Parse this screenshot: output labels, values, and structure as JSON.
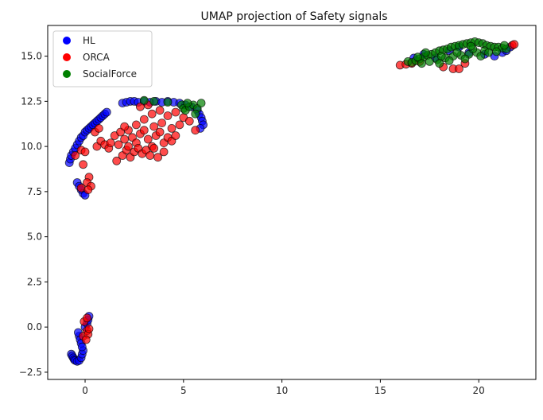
{
  "chart_data": {
    "type": "scatter",
    "title": "UMAP projection of Safety signals",
    "xlabel": "",
    "ylabel": "",
    "xlim": [
      -1.9,
      22.9
    ],
    "ylim": [
      -2.9,
      16.7
    ],
    "xticks": [
      0,
      5,
      10,
      15,
      20
    ],
    "yticks": [
      -2.5,
      0.0,
      2.5,
      5.0,
      7.5,
      10.0,
      12.5,
      15.0
    ],
    "ytick_labels": [
      "−2.5",
      "0.0",
      "2.5",
      "5.0",
      "7.5",
      "10.0",
      "12.5",
      "15.0"
    ],
    "grid": false,
    "legend_position": "top-left",
    "series": [
      {
        "name": "HL",
        "color": "#0000ff",
        "points": [
          [
            -0.8,
            9.1
          ],
          [
            -0.75,
            9.3
          ],
          [
            -0.7,
            9.5
          ],
          [
            -0.6,
            9.7
          ],
          [
            -0.5,
            9.9
          ],
          [
            -0.4,
            10.1
          ],
          [
            -0.3,
            10.3
          ],
          [
            -0.2,
            10.5
          ],
          [
            -0.1,
            10.6
          ],
          [
            0.0,
            10.8
          ],
          [
            0.1,
            10.9
          ],
          [
            0.2,
            11.0
          ],
          [
            0.3,
            11.1
          ],
          [
            0.4,
            11.2
          ],
          [
            0.5,
            11.3
          ],
          [
            0.6,
            11.4
          ],
          [
            0.7,
            11.5
          ],
          [
            0.8,
            11.6
          ],
          [
            0.9,
            11.7
          ],
          [
            1.0,
            11.8
          ],
          [
            1.1,
            11.9
          ],
          [
            -0.4,
            8.0
          ],
          [
            -0.3,
            7.8
          ],
          [
            -0.2,
            7.6
          ],
          [
            -0.1,
            7.4
          ],
          [
            0.0,
            7.3
          ],
          [
            1.9,
            12.4
          ],
          [
            2.1,
            12.45
          ],
          [
            2.3,
            12.5
          ],
          [
            2.5,
            12.5
          ],
          [
            2.7,
            12.45
          ],
          [
            3.0,
            12.5
          ],
          [
            3.3,
            12.45
          ],
          [
            3.6,
            12.5
          ],
          [
            3.9,
            12.45
          ],
          [
            4.2,
            12.5
          ],
          [
            4.5,
            12.45
          ],
          [
            4.8,
            12.4
          ],
          [
            5.1,
            12.3
          ],
          [
            5.4,
            12.2
          ],
          [
            5.7,
            12.0
          ],
          [
            5.8,
            11.8
          ],
          [
            5.9,
            11.6
          ],
          [
            5.95,
            11.4
          ],
          [
            6.0,
            11.2
          ],
          [
            5.85,
            11.0
          ],
          [
            -0.7,
            -1.5
          ],
          [
            -0.65,
            -1.6
          ],
          [
            -0.6,
            -1.7
          ],
          [
            -0.55,
            -1.8
          ],
          [
            -0.5,
            -1.85
          ],
          [
            -0.4,
            -1.9
          ],
          [
            -0.3,
            -1.85
          ],
          [
            -0.2,
            -1.7
          ],
          [
            -0.15,
            -1.5
          ],
          [
            -0.1,
            -1.3
          ],
          [
            -0.3,
            -0.5
          ],
          [
            -0.25,
            -0.7
          ],
          [
            -0.2,
            -0.9
          ],
          [
            -0.15,
            -1.1
          ],
          [
            -0.35,
            -0.3
          ],
          [
            0.0,
            0.0
          ],
          [
            0.1,
            0.2
          ],
          [
            0.15,
            0.4
          ],
          [
            0.2,
            0.6
          ],
          [
            16.7,
            14.9
          ],
          [
            17.2,
            15.1
          ],
          [
            18.5,
            15.3
          ],
          [
            19.5,
            15.2
          ],
          [
            20.3,
            15.1
          ],
          [
            20.8,
            15.0
          ],
          [
            21.2,
            15.2
          ],
          [
            21.4,
            15.3
          ],
          [
            21.6,
            15.5
          ],
          [
            19.0,
            15.5
          ],
          [
            17.8,
            14.9
          ]
        ]
      },
      {
        "name": "ORCA",
        "color": "#ff0000",
        "points": [
          [
            -0.5,
            9.5
          ],
          [
            -0.2,
            9.8
          ],
          [
            0.0,
            9.7
          ],
          [
            -0.1,
            9.0
          ],
          [
            0.6,
            10.0
          ],
          [
            0.8,
            10.3
          ],
          [
            1.0,
            10.1
          ],
          [
            1.2,
            9.9
          ],
          [
            0.5,
            10.8
          ],
          [
            0.7,
            11.0
          ],
          [
            0.2,
            8.3
          ],
          [
            0.1,
            8.0
          ],
          [
            0.3,
            7.8
          ],
          [
            -0.2,
            7.7
          ],
          [
            0.15,
            7.6
          ],
          [
            1.5,
            10.6
          ],
          [
            1.8,
            10.8
          ],
          [
            2.0,
            10.4
          ],
          [
            2.2,
            10.9
          ],
          [
            2.4,
            10.5
          ],
          [
            2.6,
            10.2
          ],
          [
            2.8,
            10.7
          ],
          [
            3.0,
            10.9
          ],
          [
            3.2,
            10.4
          ],
          [
            3.4,
            10.0
          ],
          [
            3.6,
            10.6
          ],
          [
            3.8,
            10.8
          ],
          [
            4.0,
            10.2
          ],
          [
            4.2,
            10.5
          ],
          [
            4.4,
            10.3
          ],
          [
            1.6,
            9.2
          ],
          [
            1.9,
            9.5
          ],
          [
            2.1,
            9.8
          ],
          [
            2.3,
            9.4
          ],
          [
            2.5,
            9.7
          ],
          [
            2.7,
            9.9
          ],
          [
            2.9,
            9.6
          ],
          [
            3.1,
            9.8
          ],
          [
            3.3,
            9.5
          ],
          [
            3.5,
            9.9
          ],
          [
            1.7,
            10.1
          ],
          [
            2.2,
            10.0
          ],
          [
            2.6,
            11.2
          ],
          [
            3.0,
            11.5
          ],
          [
            3.4,
            11.8
          ],
          [
            3.8,
            12.0
          ],
          [
            4.2,
            11.7
          ],
          [
            4.6,
            11.9
          ],
          [
            5.0,
            11.6
          ],
          [
            5.3,
            11.4
          ],
          [
            4.8,
            11.2
          ],
          [
            4.4,
            11.0
          ],
          [
            3.9,
            11.3
          ],
          [
            3.5,
            11.1
          ],
          [
            2.8,
            12.2
          ],
          [
            3.2,
            12.3
          ],
          [
            4.6,
            10.6
          ],
          [
            5.6,
            10.9
          ],
          [
            4.0,
            9.7
          ],
          [
            3.7,
            9.4
          ],
          [
            1.3,
            10.2
          ],
          [
            2.0,
            11.1
          ],
          [
            -0.1,
            -0.5
          ],
          [
            0.1,
            -0.2
          ],
          [
            0.15,
            -0.4
          ],
          [
            0.05,
            -0.7
          ],
          [
            -0.05,
            0.3
          ],
          [
            0.1,
            0.5
          ],
          [
            0.2,
            -0.1
          ],
          [
            16.0,
            14.5
          ],
          [
            16.3,
            14.55
          ],
          [
            16.6,
            14.6
          ],
          [
            17.0,
            14.7
          ],
          [
            18.2,
            14.4
          ],
          [
            18.7,
            14.3
          ],
          [
            19.0,
            14.3
          ],
          [
            21.7,
            15.6
          ],
          [
            21.8,
            15.65
          ],
          [
            19.3,
            14.6
          ]
        ]
      },
      {
        "name": "SocialForce",
        "color": "#008000",
        "points": [
          [
            3.0,
            12.55
          ],
          [
            3.5,
            12.5
          ],
          [
            4.2,
            12.45
          ],
          [
            4.9,
            12.3
          ],
          [
            5.0,
            12.1
          ],
          [
            5.1,
            12.0
          ],
          [
            5.3,
            12.2
          ],
          [
            5.5,
            12.3
          ],
          [
            5.7,
            12.1
          ],
          [
            5.9,
            12.4
          ],
          [
            5.6,
            11.8
          ],
          [
            5.2,
            12.4
          ],
          [
            16.4,
            14.7
          ],
          [
            16.6,
            14.65
          ],
          [
            16.8,
            14.75
          ],
          [
            17.0,
            14.85
          ],
          [
            17.2,
            14.95
          ],
          [
            17.4,
            15.05
          ],
          [
            17.6,
            15.1
          ],
          [
            17.8,
            15.2
          ],
          [
            18.0,
            15.3
          ],
          [
            18.2,
            15.35
          ],
          [
            18.4,
            15.4
          ],
          [
            18.6,
            15.5
          ],
          [
            18.8,
            15.55
          ],
          [
            19.0,
            15.6
          ],
          [
            19.2,
            15.65
          ],
          [
            19.4,
            15.7
          ],
          [
            19.6,
            15.75
          ],
          [
            19.8,
            15.8
          ],
          [
            20.0,
            15.75
          ],
          [
            20.2,
            15.7
          ],
          [
            20.4,
            15.6
          ],
          [
            20.6,
            15.55
          ],
          [
            20.8,
            15.5
          ],
          [
            21.0,
            15.5
          ],
          [
            21.2,
            15.45
          ],
          [
            21.4,
            15.4
          ],
          [
            17.1,
            14.6
          ],
          [
            17.5,
            14.7
          ],
          [
            17.9,
            14.8
          ],
          [
            18.3,
            14.9
          ],
          [
            18.7,
            15.0
          ],
          [
            19.1,
            15.05
          ],
          [
            19.5,
            15.1
          ],
          [
            19.9,
            15.2
          ],
          [
            20.3,
            15.3
          ],
          [
            18.1,
            15.0
          ],
          [
            18.9,
            15.2
          ],
          [
            19.7,
            15.4
          ],
          [
            20.5,
            15.2
          ],
          [
            17.3,
            15.2
          ],
          [
            16.9,
            14.95
          ],
          [
            18.5,
            14.75
          ],
          [
            19.3,
            14.85
          ],
          [
            20.1,
            15.0
          ],
          [
            20.9,
            15.25
          ],
          [
            21.3,
            15.6
          ],
          [
            19.6,
            15.55
          ],
          [
            18.0,
            14.6
          ]
        ]
      }
    ]
  }
}
